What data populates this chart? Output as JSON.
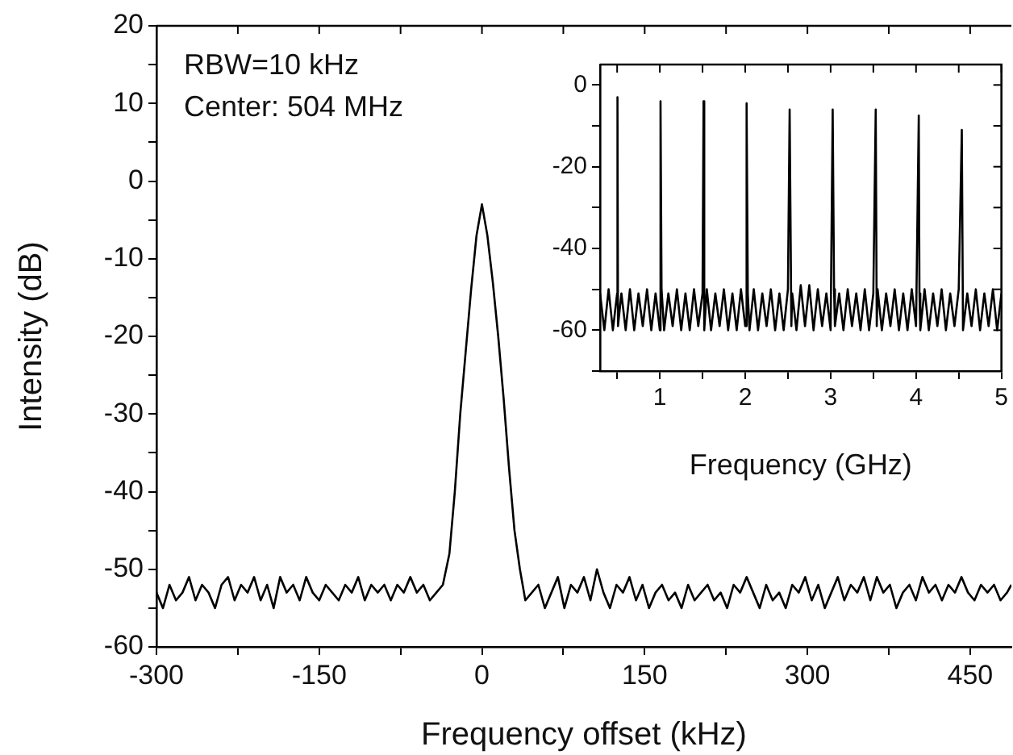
{
  "chart_data": [
    {
      "type": "line",
      "xlabel": "Frequency offset (kHz)",
      "ylabel": "Intensity (dB)",
      "annotations": [
        "RBW=10 kHz",
        "Center: 504 MHz"
      ],
      "xlim": [
        -300,
        488
      ],
      "ylim": [
        -60,
        20
      ],
      "xticks": [
        -300,
        {
          "value": -225,
          "label": null
        },
        -150,
        {
          "value": -75,
          "label": null
        },
        0,
        {
          "value": 75,
          "label": null
        },
        150,
        {
          "value": 225,
          "label": null
        },
        300,
        {
          "value": 375,
          "label": null
        },
        450
      ],
      "yticks": [
        -60,
        {
          "value": -55,
          "label": null
        },
        -50,
        {
          "value": -45,
          "label": null
        },
        -40,
        {
          "value": -35,
          "label": null
        },
        -30,
        {
          "value": -25,
          "label": null
        },
        -20,
        {
          "value": -15,
          "label": null
        },
        -10,
        {
          "value": -5,
          "label": null
        },
        0,
        {
          "value": 5,
          "label": null
        },
        10,
        {
          "value": 15,
          "label": null
        },
        20
      ],
      "grid": false,
      "legend": false,
      "marker": "none",
      "line_style": "solid",
      "series": [
        {
          "color": "#000000",
          "x": [
            -300,
            -294,
            -288,
            -282,
            -276,
            -270,
            -264,
            -258,
            -252,
            -246,
            -240,
            -234,
            -228,
            -222,
            -216,
            -210,
            -204,
            -198,
            -192,
            -186,
            -180,
            -174,
            -168,
            -162,
            -156,
            -150,
            -144,
            -138,
            -132,
            -126,
            -120,
            -114,
            -108,
            -102,
            -96,
            -90,
            -84,
            -78,
            -72,
            -66,
            -60,
            -54,
            -48,
            -42,
            -36,
            -30,
            -25,
            -20,
            -15,
            -10,
            -5,
            0,
            5,
            10,
            15,
            20,
            25,
            30,
            35,
            40,
            46,
            52,
            58,
            64,
            70,
            76,
            82,
            88,
            94,
            100,
            106,
            112,
            118,
            124,
            130,
            136,
            142,
            148,
            154,
            160,
            166,
            172,
            178,
            184,
            190,
            196,
            202,
            208,
            214,
            220,
            226,
            232,
            238,
            244,
            250,
            256,
            262,
            268,
            274,
            280,
            286,
            292,
            298,
            304,
            310,
            316,
            322,
            328,
            334,
            340,
            346,
            352,
            358,
            364,
            370,
            376,
            382,
            388,
            394,
            400,
            406,
            412,
            418,
            424,
            430,
            436,
            442,
            448,
            454,
            460,
            466,
            472,
            478,
            484,
            488
          ],
          "values": [
            -53,
            -55,
            -52,
            -54,
            -53,
            -51,
            -54,
            -52,
            -53,
            -55,
            -52,
            -51,
            -54,
            -52,
            -53,
            -51,
            -54,
            -52,
            -55,
            -51,
            -53,
            -52,
            -54,
            -51,
            -53,
            -54,
            -52,
            -53,
            -54,
            -52,
            -53,
            -51,
            -54,
            -52,
            -53,
            -52,
            -54,
            -52,
            -53,
            -51,
            -53,
            -52,
            -54,
            -53,
            -52,
            -48,
            -40,
            -30,
            -22,
            -14,
            -7,
            -3,
            -7,
            -13,
            -20,
            -28,
            -37,
            -45,
            -50,
            -54,
            -53,
            -52,
            -55,
            -53,
            -51,
            -55,
            -52,
            -53,
            -51,
            -54,
            -50,
            -53,
            -55,
            -52,
            -53,
            -51,
            -54,
            -52,
            -55,
            -53,
            -52,
            -54,
            -53,
            -55,
            -52,
            -54,
            -53,
            -52,
            -54,
            -53,
            -55,
            -52,
            -53,
            -51,
            -53,
            -55,
            -52,
            -54,
            -53,
            -55,
            -52,
            -53,
            -51,
            -54,
            -52,
            -55,
            -53,
            -51,
            -54,
            -52,
            -53,
            -51,
            -54,
            -51,
            -53,
            -52,
            -55,
            -53,
            -52,
            -54,
            -51,
            -53,
            -52,
            -54,
            -52,
            -53,
            -51,
            -53,
            -54,
            -52,
            -53,
            -52,
            -54,
            -53,
            -52
          ]
        }
      ]
    },
    {
      "type": "line",
      "xlabel": "Frequency (GHz)",
      "xlim": [
        0.3,
        5
      ],
      "ylim": [
        -70,
        5
      ],
      "xticks": [
        {
          "value": 0.5,
          "label": null
        },
        1,
        {
          "value": 1.5,
          "label": null
        },
        2,
        {
          "value": 2.5,
          "label": null
        },
        3,
        {
          "value": 3.5,
          "label": null
        },
        4,
        {
          "value": 4.5,
          "label": null
        },
        5
      ],
      "yticks": [
        {
          "value": -70,
          "label": null
        },
        -60,
        {
          "value": -50,
          "label": null
        },
        -40,
        {
          "value": -30,
          "label": null
        },
        -20,
        {
          "value": -10,
          "label": null
        },
        0
      ],
      "grid": false,
      "legend": false,
      "marker": "none",
      "line_style": "solid",
      "series": [
        {
          "color": "#000000",
          "x": [
            0.3,
            0.35,
            0.4,
            0.45,
            0.5,
            0.504,
            0.51,
            0.55,
            0.6,
            0.65,
            0.7,
            0.75,
            0.8,
            0.85,
            0.9,
            0.95,
            1.0,
            1.008,
            1.02,
            1.05,
            1.1,
            1.15,
            1.2,
            1.25,
            1.3,
            1.35,
            1.4,
            1.45,
            1.5,
            1.512,
            1.52,
            1.55,
            1.6,
            1.65,
            1.7,
            1.75,
            1.8,
            1.85,
            1.9,
            1.95,
            2.0,
            2.016,
            2.03,
            2.05,
            2.1,
            2.15,
            2.2,
            2.25,
            2.3,
            2.35,
            2.4,
            2.45,
            2.5,
            2.52,
            2.54,
            2.55,
            2.6,
            2.65,
            2.7,
            2.75,
            2.8,
            2.85,
            2.9,
            2.95,
            3.0,
            3.024,
            3.04,
            3.05,
            3.1,
            3.15,
            3.2,
            3.25,
            3.3,
            3.35,
            3.4,
            3.45,
            3.5,
            3.528,
            3.54,
            3.55,
            3.6,
            3.65,
            3.7,
            3.75,
            3.8,
            3.85,
            3.9,
            3.95,
            4.0,
            4.032,
            4.04,
            4.05,
            4.1,
            4.15,
            4.2,
            4.25,
            4.3,
            4.35,
            4.4,
            4.45,
            4.5,
            4.536,
            4.55,
            4.6,
            4.65,
            4.7,
            4.75,
            4.8,
            4.85,
            4.9,
            4.95,
            5.0
          ],
          "values": [
            -51,
            -60,
            -50,
            -60,
            -51,
            -3,
            -59,
            -51,
            -60,
            -50,
            -60,
            -51,
            -59,
            -50,
            -60,
            -51,
            -60,
            -4,
            -50,
            -60,
            -51,
            -59,
            -50,
            -60,
            -51,
            -60,
            -50,
            -59,
            -51,
            -4,
            -60,
            -50,
            -60,
            -51,
            -59,
            -50,
            -60,
            -51,
            -60,
            -50,
            -59,
            -4.5,
            -51,
            -60,
            -50,
            -60,
            -51,
            -59,
            -50,
            -60,
            -51,
            -60,
            -50,
            -6,
            -59,
            -51,
            -60,
            -49,
            -59,
            -49,
            -60,
            -50,
            -59,
            -51,
            -60,
            -6,
            -50,
            -59,
            -51,
            -60,
            -50,
            -59,
            -51,
            -60,
            -50,
            -60,
            -51,
            -6,
            -59,
            -50,
            -60,
            -51,
            -59,
            -50,
            -60,
            -51,
            -60,
            -50,
            -59,
            -7.5,
            -51,
            -60,
            -50,
            -60,
            -51,
            -59,
            -50,
            -60,
            -51,
            -59,
            -50,
            -11,
            -60,
            -51,
            -59,
            -50,
            -60,
            -51,
            -59,
            -50,
            -60,
            -51
          ]
        }
      ]
    }
  ]
}
